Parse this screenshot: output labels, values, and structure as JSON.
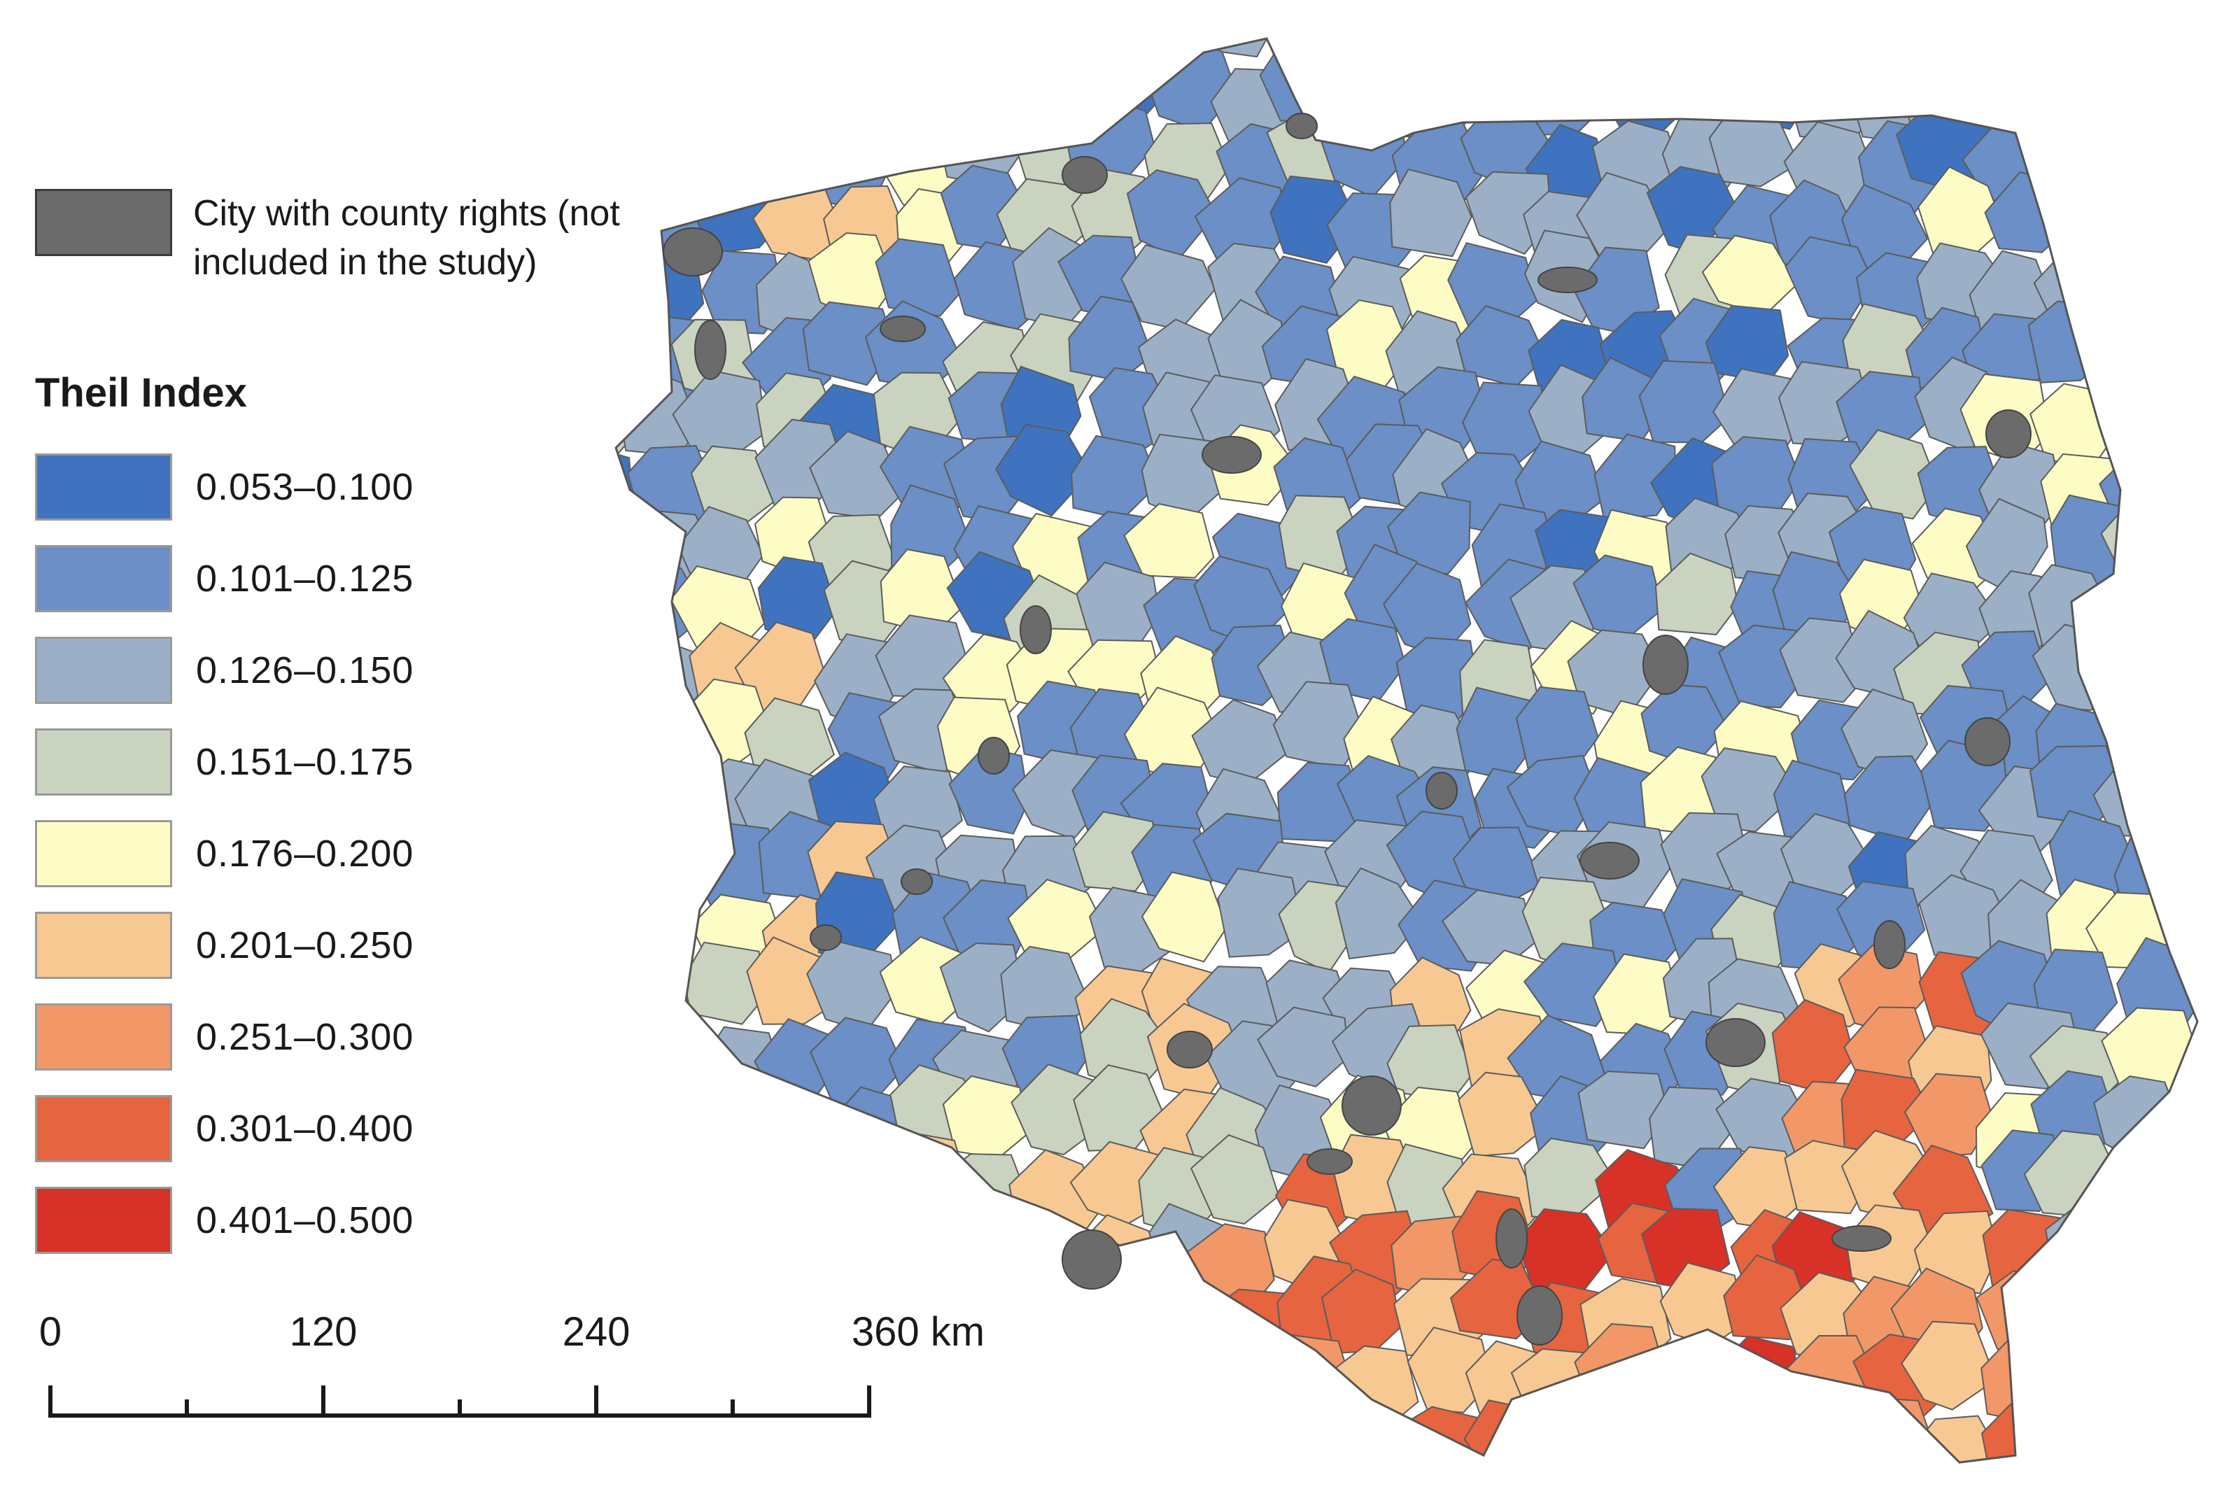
{
  "legend": {
    "city_label": "City with county rights (not included in the study)",
    "city_color": "#6b6b6b",
    "title": "Theil Index",
    "classes": [
      {
        "label": "0.053–0.100",
        "color": "#3f73bf"
      },
      {
        "label": "0.101–0.125",
        "color": "#6b8fc6"
      },
      {
        "label": "0.126–0.150",
        "color": "#9bb0c7"
      },
      {
        "label": "0.151–0.175",
        "color": "#c9d3c0"
      },
      {
        "label": "0.176–0.200",
        "color": "#fdfcc4"
      },
      {
        "label": "0.201–0.250",
        "color": "#f8c892"
      },
      {
        "label": "0.251–0.300",
        "color": "#f29767"
      },
      {
        "label": "0.301–0.400",
        "color": "#e6643f"
      },
      {
        "label": "0.401–0.500",
        "color": "#d83127"
      }
    ]
  },
  "scalebar": {
    "ticks": [
      "0",
      "120",
      "240",
      "360 km"
    ]
  }
}
